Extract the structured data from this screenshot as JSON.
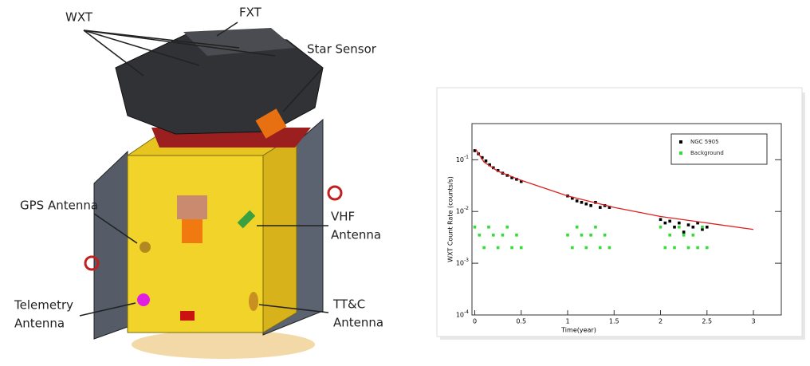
{
  "labels": [
    {
      "lines": [
        "WXT"
      ]
    },
    {
      "lines": [
        "FXT"
      ]
    },
    {
      "lines": [
        "Star Sensor"
      ]
    },
    {
      "lines": [
        "GPS Antenna"
      ]
    },
    {
      "lines": [
        "VHF",
        "Antenna"
      ]
    },
    {
      "lines": [
        "Telemetry",
        "Antenna"
      ]
    },
    {
      "lines": [
        "TT&C",
        "Antenna"
      ]
    }
  ],
  "chart_data": {
    "type": "scatter",
    "x_label": "Time(year)",
    "y_label": "WXT Count Rate (counts/s)",
    "xlim": [
      -0.03,
      3.3
    ],
    "ylim": [
      0.0001,
      0.5
    ],
    "log_y": true,
    "xticks": [
      0,
      0.5,
      1,
      1.5,
      2,
      2.5,
      3
    ],
    "yticks": [
      {
        "value": 0.0001,
        "label": "10^-4"
      },
      {
        "value": 0.001,
        "label": "10^-3"
      },
      {
        "value": 0.01,
        "label": "10^-2"
      },
      {
        "value": 0.1,
        "label": "10^-1"
      }
    ],
    "legend": "upper right",
    "series": [
      {
        "name": "NGC 5905",
        "color": "#000000",
        "x": [
          0.0,
          0.04,
          0.08,
          0.12,
          0.16,
          0.2,
          0.25,
          0.3,
          0.35,
          0.4,
          0.45,
          0.5,
          1.0,
          1.05,
          1.1,
          1.15,
          1.2,
          1.25,
          1.3,
          1.35,
          1.4,
          1.45,
          2.0,
          2.05,
          2.1,
          2.15,
          2.2,
          2.25,
          2.3,
          2.35,
          2.4,
          2.45,
          2.5
        ],
        "values": [
          0.15,
          0.13,
          0.11,
          0.095,
          0.08,
          0.07,
          0.062,
          0.055,
          0.05,
          0.045,
          0.042,
          0.038,
          0.02,
          0.018,
          0.016,
          0.015,
          0.014,
          0.013,
          0.015,
          0.012,
          0.013,
          0.012,
          0.007,
          0.006,
          0.0065,
          0.005,
          0.006,
          0.004,
          0.0055,
          0.005,
          0.006,
          0.0045,
          0.005
        ]
      },
      {
        "name": "Background",
        "color": "#33dd33",
        "x": [
          0.0,
          0.05,
          0.1,
          0.15,
          0.2,
          0.25,
          0.3,
          0.35,
          0.4,
          0.45,
          0.5,
          1.0,
          1.05,
          1.1,
          1.15,
          1.2,
          1.25,
          1.3,
          1.35,
          1.4,
          1.45,
          2.0,
          2.05,
          2.1,
          2.15,
          2.2,
          2.25,
          2.3,
          2.35,
          2.4,
          2.45,
          2.5
        ],
        "values": [
          0.005,
          0.0035,
          0.002,
          0.005,
          0.0035,
          0.002,
          0.0035,
          0.005,
          0.002,
          0.0035,
          0.002,
          0.0035,
          0.002,
          0.005,
          0.0035,
          0.002,
          0.0035,
          0.005,
          0.002,
          0.0035,
          0.002,
          0.005,
          0.002,
          0.0035,
          0.002,
          0.005,
          0.0035,
          0.002,
          0.0035,
          0.002,
          0.005,
          0.002
        ]
      },
      {
        "color": "#e02020",
        "line": true,
        "x": [
          0.01,
          0.1,
          0.25,
          0.5,
          1,
          1.5,
          2,
          2.5,
          3
        ],
        "values": [
          0.16,
          0.09,
          0.06,
          0.04,
          0.02,
          0.012,
          0.008,
          0.006,
          0.0045
        ]
      }
    ]
  }
}
